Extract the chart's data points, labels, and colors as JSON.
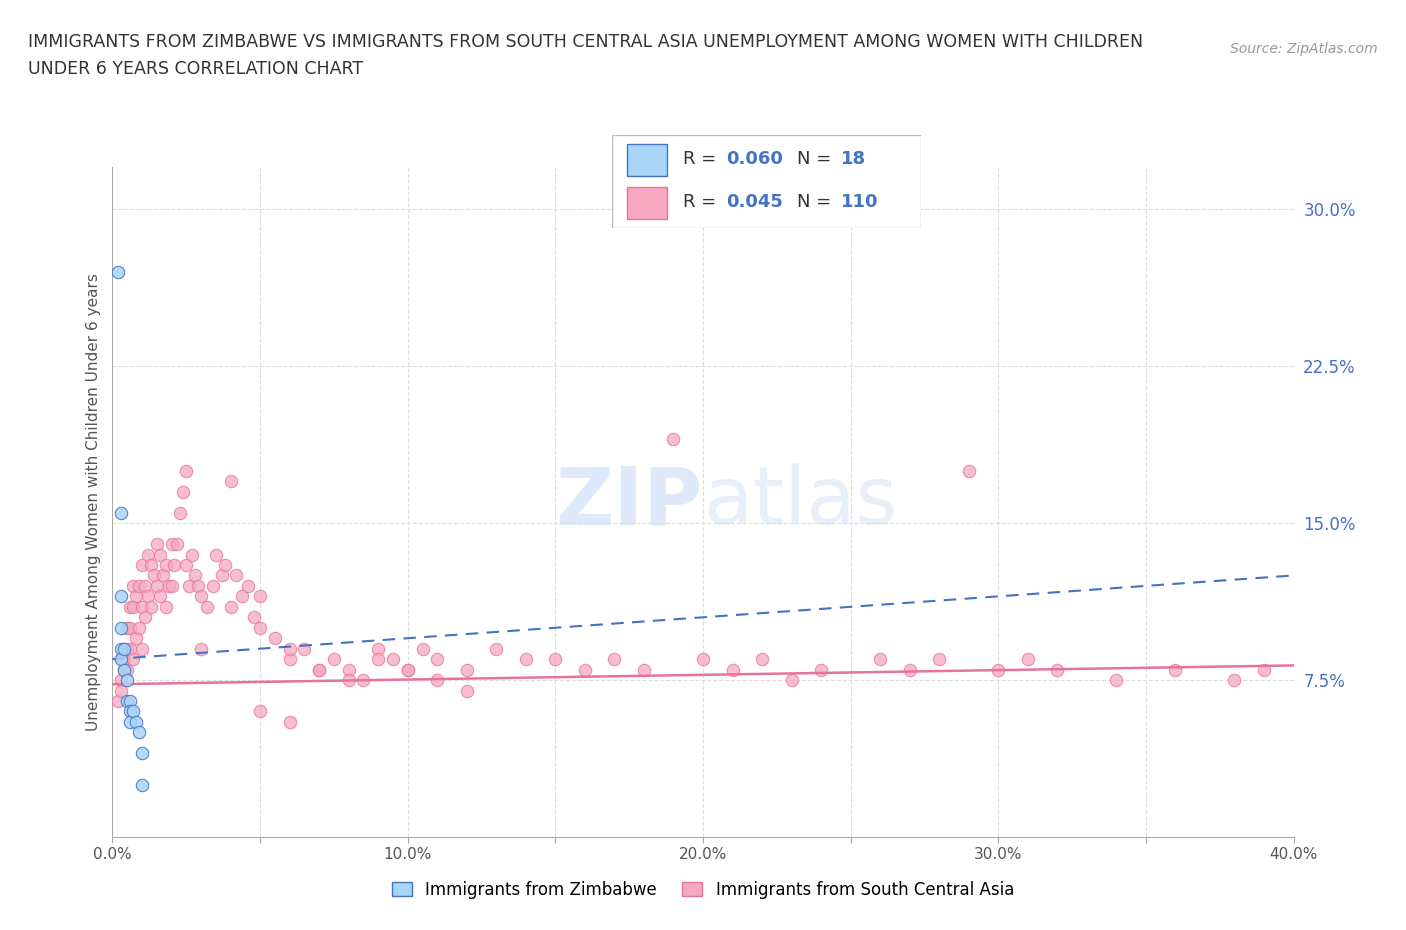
{
  "title_line1": "IMMIGRANTS FROM ZIMBABWE VS IMMIGRANTS FROM SOUTH CENTRAL ASIA UNEMPLOYMENT AMONG WOMEN WITH CHILDREN",
  "title_line2": "UNDER 6 YEARS CORRELATION CHART",
  "source": "Source: ZipAtlas.com",
  "ylabel": "Unemployment Among Women with Children Under 6 years",
  "xlim": [
    0.0,
    0.4
  ],
  "ylim": [
    0.0,
    0.32
  ],
  "xticks": [
    0.0,
    0.05,
    0.1,
    0.15,
    0.2,
    0.25,
    0.3,
    0.35,
    0.4
  ],
  "xtick_labels": [
    "0.0%",
    "",
    "10.0%",
    "",
    "20.0%",
    "",
    "30.0%",
    "",
    "40.0%"
  ],
  "yticks_right": [
    0.075,
    0.15,
    0.225,
    0.3
  ],
  "ytick_labels_right": [
    "7.5%",
    "15.0%",
    "22.5%",
    "30.0%"
  ],
  "legend_zim_R": "0.060",
  "legend_zim_N": "18",
  "legend_sca_R": "0.045",
  "legend_sca_N": "110",
  "color_zim": "#A8D4F5",
  "color_sca": "#F5A8C0",
  "line_color_zim": "#4472C4",
  "line_color_sca": "#E8739A",
  "grid_color": "#DDDDDD",
  "watermark": "ZIPatlas",
  "zim_x": [
    0.002,
    0.003,
    0.003,
    0.003,
    0.003,
    0.003,
    0.004,
    0.004,
    0.005,
    0.005,
    0.006,
    0.006,
    0.006,
    0.007,
    0.008,
    0.009,
    0.01,
    0.01
  ],
  "zim_y": [
    0.27,
    0.155,
    0.115,
    0.1,
    0.09,
    0.085,
    0.09,
    0.08,
    0.075,
    0.065,
    0.065,
    0.06,
    0.055,
    0.06,
    0.055,
    0.05,
    0.04,
    0.025
  ],
  "sca_x": [
    0.002,
    0.003,
    0.003,
    0.003,
    0.004,
    0.004,
    0.004,
    0.005,
    0.005,
    0.005,
    0.006,
    0.006,
    0.006,
    0.007,
    0.007,
    0.007,
    0.008,
    0.008,
    0.009,
    0.009,
    0.01,
    0.01,
    0.01,
    0.011,
    0.011,
    0.012,
    0.012,
    0.013,
    0.013,
    0.014,
    0.015,
    0.015,
    0.016,
    0.016,
    0.017,
    0.018,
    0.018,
    0.019,
    0.02,
    0.02,
    0.021,
    0.022,
    0.023,
    0.024,
    0.025,
    0.026,
    0.027,
    0.028,
    0.029,
    0.03,
    0.032,
    0.034,
    0.035,
    0.037,
    0.038,
    0.04,
    0.042,
    0.044,
    0.046,
    0.048,
    0.05,
    0.055,
    0.06,
    0.065,
    0.07,
    0.075,
    0.08,
    0.085,
    0.09,
    0.095,
    0.1,
    0.105,
    0.11,
    0.12,
    0.13,
    0.14,
    0.15,
    0.16,
    0.17,
    0.18,
    0.19,
    0.2,
    0.21,
    0.22,
    0.23,
    0.24,
    0.26,
    0.27,
    0.28,
    0.29,
    0.3,
    0.31,
    0.32,
    0.34,
    0.36,
    0.38,
    0.39,
    0.025,
    0.03,
    0.04,
    0.05,
    0.06,
    0.07,
    0.08,
    0.09,
    0.1,
    0.11,
    0.12,
    0.05,
    0.06
  ],
  "sca_y": [
    0.065,
    0.085,
    0.075,
    0.07,
    0.09,
    0.085,
    0.08,
    0.1,
    0.09,
    0.08,
    0.11,
    0.1,
    0.09,
    0.12,
    0.11,
    0.085,
    0.115,
    0.095,
    0.12,
    0.1,
    0.13,
    0.11,
    0.09,
    0.12,
    0.105,
    0.135,
    0.115,
    0.13,
    0.11,
    0.125,
    0.14,
    0.12,
    0.135,
    0.115,
    0.125,
    0.13,
    0.11,
    0.12,
    0.14,
    0.12,
    0.13,
    0.14,
    0.155,
    0.165,
    0.13,
    0.12,
    0.135,
    0.125,
    0.12,
    0.115,
    0.11,
    0.12,
    0.135,
    0.125,
    0.13,
    0.11,
    0.125,
    0.115,
    0.12,
    0.105,
    0.115,
    0.095,
    0.085,
    0.09,
    0.08,
    0.085,
    0.08,
    0.075,
    0.09,
    0.085,
    0.08,
    0.09,
    0.085,
    0.08,
    0.09,
    0.085,
    0.085,
    0.08,
    0.085,
    0.08,
    0.19,
    0.085,
    0.08,
    0.085,
    0.075,
    0.08,
    0.085,
    0.08,
    0.085,
    0.175,
    0.08,
    0.085,
    0.08,
    0.075,
    0.08,
    0.075,
    0.08,
    0.175,
    0.09,
    0.17,
    0.1,
    0.09,
    0.08,
    0.075,
    0.085,
    0.08,
    0.075,
    0.07,
    0.06,
    0.055
  ],
  "zim_line_x": [
    0.0,
    0.4
  ],
  "zim_line_y": [
    0.085,
    0.125
  ],
  "sca_line_x": [
    0.0,
    0.4
  ],
  "sca_line_y": [
    0.073,
    0.082
  ]
}
